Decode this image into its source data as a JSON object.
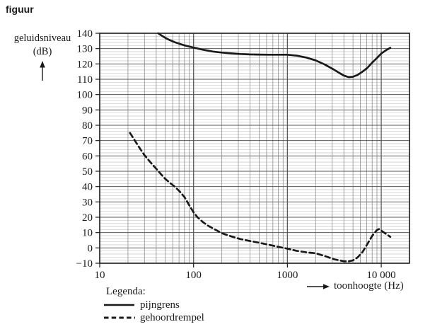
{
  "title": "figuur",
  "y_axis": {
    "label_line1": "geluidsniveau",
    "label_line2": "(dB)"
  },
  "x_axis": {
    "label": "toonhoogte (Hz)"
  },
  "legend": {
    "title": "Legenda:",
    "items": [
      {
        "label": "pijngrens",
        "style": "solid"
      },
      {
        "label": "gehoordrempel",
        "style": "dashed"
      }
    ]
  },
  "colors": {
    "background": "#ffffff",
    "ink": "#1a1a1a",
    "frame": "#1a1a1a",
    "grid_major": "#5a5a5a",
    "grid_minor_v": "#8f8f8f",
    "grid_minor_h": "#c6c6c6"
  },
  "chart_data": {
    "type": "line",
    "x_scale": "log",
    "x_range": [
      10,
      20000
    ],
    "y_range": [
      -10,
      140
    ],
    "y_minor_step": 2,
    "grid": "on",
    "legend_position": "bottom-left",
    "x_ticks": [
      {
        "value": 10,
        "label": "10"
      },
      {
        "value": 100,
        "label": "100"
      },
      {
        "value": 1000,
        "label": "1000"
      },
      {
        "value": 10000,
        "label": "10 000"
      }
    ],
    "y_ticks": [
      {
        "value": 140,
        "label": "140"
      },
      {
        "value": 130,
        "label": "130"
      },
      {
        "value": 120,
        "label": "120"
      },
      {
        "value": 110,
        "label": "110"
      },
      {
        "value": 100,
        "label": "100"
      },
      {
        "value": 90,
        "label": "90"
      },
      {
        "value": 80,
        "label": "80"
      },
      {
        "value": 70,
        "label": "70"
      },
      {
        "value": 60,
        "label": "60"
      },
      {
        "value": 50,
        "label": "50"
      },
      {
        "value": 40,
        "label": "40"
      },
      {
        "value": 30,
        "label": "30"
      },
      {
        "value": 20,
        "label": "20"
      },
      {
        "value": 10,
        "label": "10"
      },
      {
        "value": 0,
        "label": "0"
      },
      {
        "value": -10,
        "label": "−10"
      }
    ],
    "series": [
      {
        "name": "pijngrens",
        "style": "solid",
        "points": [
          [
            42,
            140
          ],
          [
            46,
            138.4
          ],
          [
            50,
            137
          ],
          [
            56,
            135.5
          ],
          [
            63,
            134.2
          ],
          [
            71,
            133.1
          ],
          [
            80,
            132.1
          ],
          [
            90,
            131.3
          ],
          [
            100,
            130.7
          ],
          [
            125,
            129.3
          ],
          [
            160,
            128.1
          ],
          [
            200,
            127.4
          ],
          [
            250,
            126.9
          ],
          [
            315,
            126.5
          ],
          [
            400,
            126.2
          ],
          [
            500,
            126.1
          ],
          [
            630,
            126
          ],
          [
            800,
            126
          ],
          [
            1000,
            126
          ],
          [
            1250,
            125.4
          ],
          [
            1600,
            124.1
          ],
          [
            2000,
            122.3
          ],
          [
            2500,
            119.6
          ],
          [
            3150,
            116.2
          ],
          [
            3600,
            114
          ],
          [
            4000,
            112.4
          ],
          [
            4500,
            111.4
          ],
          [
            5000,
            111.6
          ],
          [
            5600,
            112.8
          ],
          [
            6300,
            114.9
          ],
          [
            7100,
            117.4
          ],
          [
            8000,
            120.8
          ],
          [
            9000,
            123.9
          ],
          [
            10000,
            126.8
          ],
          [
            11200,
            128.9
          ],
          [
            12500,
            130.5
          ]
        ]
      },
      {
        "name": "gehoordrempel",
        "style": "dashed",
        "points": [
          [
            21,
            75
          ],
          [
            24,
            69.5
          ],
          [
            27,
            64.6
          ],
          [
            30,
            60.5
          ],
          [
            35,
            55.6
          ],
          [
            40,
            51.6
          ],
          [
            45,
            48
          ],
          [
            50,
            45
          ],
          [
            56,
            42.4
          ],
          [
            63,
            40
          ],
          [
            71,
            36.9
          ],
          [
            80,
            33.2
          ],
          [
            90,
            27.8
          ],
          [
            100,
            23.2
          ],
          [
            110,
            20
          ],
          [
            125,
            17
          ],
          [
            140,
            14.8
          ],
          [
            160,
            12.8
          ],
          [
            200,
            9.6
          ],
          [
            250,
            7.6
          ],
          [
            315,
            5.8
          ],
          [
            400,
            4.5
          ],
          [
            500,
            3.4
          ],
          [
            630,
            2.1
          ],
          [
            800,
            0.7
          ],
          [
            1000,
            -0.5
          ],
          [
            1250,
            -1.9
          ],
          [
            1600,
            -2.9
          ],
          [
            2000,
            -3.5
          ],
          [
            2500,
            -5.3
          ],
          [
            3150,
            -7.4
          ],
          [
            4000,
            -8.7
          ],
          [
            4500,
            -8.8
          ],
          [
            5000,
            -8.1
          ],
          [
            5600,
            -6.2
          ],
          [
            6300,
            -2.8
          ],
          [
            7100,
            2.4
          ],
          [
            8000,
            7.8
          ],
          [
            9000,
            11.7
          ],
          [
            9500,
            12.3
          ],
          [
            10000,
            11.3
          ],
          [
            11200,
            9.2
          ],
          [
            12500,
            7.2
          ]
        ]
      }
    ]
  }
}
